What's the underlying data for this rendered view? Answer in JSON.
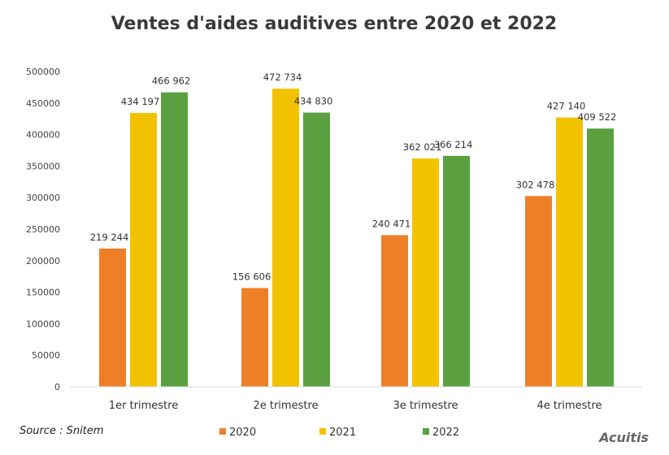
{
  "chart_data": {
    "type": "bar",
    "title": "Ventes d'aides auditives entre 2020 et 2022",
    "categories": [
      "1er trimestre",
      "2e trimestre",
      "3e trimestre",
      "4e trimestre"
    ],
    "series": [
      {
        "name": "2020",
        "color": "#ef7f27",
        "values": [
          219244,
          156606,
          240471,
          302478
        ],
        "labels": [
          "219 244",
          "156 606",
          "240 471",
          "302 478"
        ]
      },
      {
        "name": "2021",
        "color": "#f2c200",
        "values": [
          434197,
          472734,
          362021,
          427140
        ],
        "labels": [
          "434 197",
          "472 734",
          "362 021",
          "427 140"
        ]
      },
      {
        "name": "2022",
        "color": "#5aa040",
        "values": [
          466962,
          434830,
          366214,
          409522
        ],
        "labels": [
          "466 962",
          "434 830",
          "366 214",
          "409 522"
        ]
      }
    ],
    "ylim": [
      0,
      500000
    ],
    "yticks": [
      "0",
      "50000",
      "100000",
      "150000",
      "200000",
      "250000",
      "300000",
      "350000",
      "400000",
      "450000",
      "500000"
    ],
    "grid": false,
    "legend": "bottom"
  },
  "footer": {
    "source": "Source : Snitem",
    "brand": "Acuitis"
  }
}
